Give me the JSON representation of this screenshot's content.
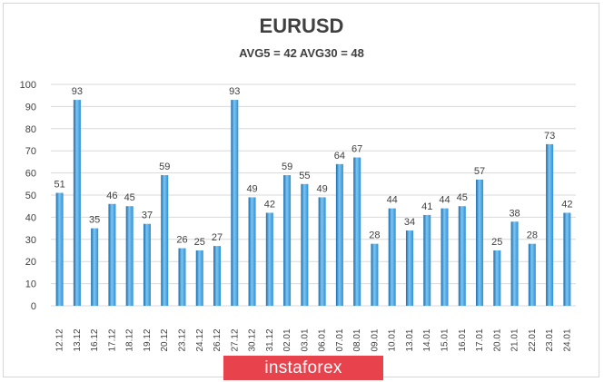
{
  "chart_data": {
    "type": "bar",
    "title": "EURUSD",
    "subtitle": "AVG5 = 42 AVG30 = 48",
    "categories": [
      "12.12",
      "13.12",
      "16.12",
      "17.12",
      "18.12",
      "19.12",
      "20.12",
      "23.12",
      "24.12",
      "26.12",
      "27.12",
      "30.12",
      "31.12",
      "02.01",
      "03.01",
      "06.01",
      "07.01",
      "08.01",
      "09.01",
      "10.01",
      "13.01",
      "14.01",
      "15.01",
      "16.01",
      "17.01",
      "20.01",
      "21.01",
      "22.01",
      "23.01",
      "24.01"
    ],
    "values": [
      51,
      93,
      35,
      46,
      45,
      37,
      59,
      26,
      25,
      27,
      93,
      49,
      42,
      59,
      55,
      49,
      64,
      67,
      28,
      44,
      34,
      41,
      44,
      45,
      57,
      25,
      38,
      28,
      73,
      42
    ],
    "xlabel": "",
    "ylabel": "",
    "ylim": [
      0,
      100
    ],
    "yticks": [
      0,
      10,
      20,
      30,
      40,
      50,
      60,
      70,
      80,
      90,
      100
    ],
    "grid": true,
    "bar_color": "#2e8fd6",
    "bar_highlight": "#7cc6f3",
    "bar_shadow": "#1c6aa8"
  },
  "watermark": {
    "text": "instaforex",
    "color": "#e8424d"
  }
}
